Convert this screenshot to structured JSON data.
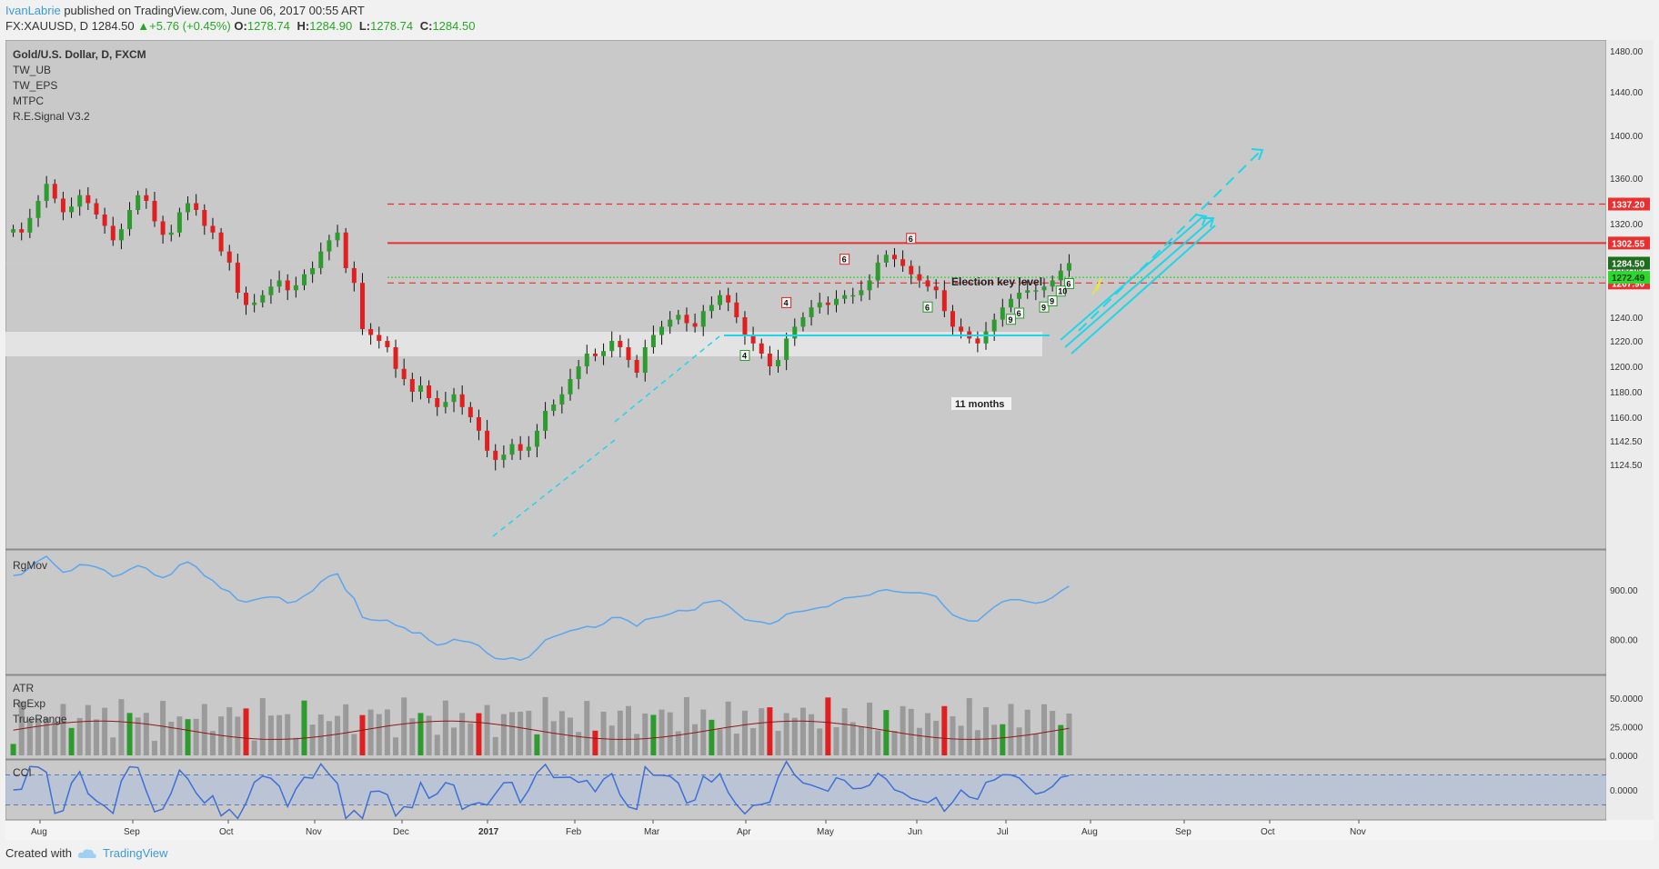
{
  "header": {
    "author": "IvanLabrie",
    "published_text": " published on TradingView.com, June 06, 2017 00:55 ART",
    "symbol": "FX:XAUUSD, D",
    "last": "1284.50",
    "change": "+5.76 (+0.45%)",
    "o_label": "O:",
    "o": "1278.74",
    "h_label": "H:",
    "h": "1284.90",
    "l_label": "L:",
    "l": "1278.74",
    "c_label": "C:",
    "c": "1284.50"
  },
  "legend": [
    "Gold/U.S. Dollar, D, FXCM",
    "TW_UB",
    "TW_EPS",
    "MTPC",
    "R.E.Signal V3.2"
  ],
  "footer": {
    "created_with": "Created with",
    "brand": "TradingView"
  },
  "colors": {
    "up": "#2e9b2e",
    "down": "#e02020",
    "cyan": "#1fd6e8",
    "blue_line": "#5ba6ef",
    "red_level": "#e83030",
    "accent": "#3d9bd6"
  },
  "chart_data": {
    "type": "candlestick",
    "title": "Gold/U.S. Dollar, D, FXCM",
    "x_labels": [
      "Aug",
      "Sep",
      "Oct",
      "Nov",
      "Dec",
      "2017",
      "Feb",
      "Mar",
      "Apr",
      "May",
      "Jun",
      "Jul",
      "Aug",
      "Sep",
      "Oct",
      "Nov"
    ],
    "price_ticks": [
      "1480.00",
      "1440.00",
      "1400.00",
      "1360.00",
      "1320.00",
      "1280.00",
      "1240.00",
      "1220.00",
      "1200.00",
      "1180.00",
      "1160.00",
      "1142.50",
      "1124.50"
    ],
    "ylim": [
      1110,
      1490
    ],
    "levels": [
      {
        "label": "1337.20",
        "value": 1337.2,
        "style": "dashed",
        "color": "#e83030"
      },
      {
        "label": "1302.55",
        "value": 1302.55,
        "style": "solid",
        "color": "#e83030"
      },
      {
        "label": "1267.90",
        "value": 1267.9,
        "style": "dashed",
        "color": "#e83030"
      },
      {
        "label": "1284.50",
        "value": 1284.5,
        "style": "last",
        "color": "#1e6e1e"
      },
      {
        "label": "1272.49",
        "value": 1272.49,
        "style": "dotted",
        "color": "#2ed62e"
      }
    ],
    "annotations": {
      "election": "Election key level",
      "months": "11 months",
      "counts": [
        "4",
        "6",
        "6",
        "6",
        "4",
        "6",
        "6",
        "9",
        "9",
        "10",
        "9"
      ]
    },
    "close_series": [
      1315,
      1312,
      1325,
      1340,
      1355,
      1342,
      1330,
      1335,
      1345,
      1338,
      1328,
      1318,
      1305,
      1315,
      1332,
      1345,
      1340,
      1322,
      1310,
      1312,
      1330,
      1338,
      1332,
      1318,
      1312,
      1295,
      1285,
      1260,
      1250,
      1252,
      1258,
      1265,
      1270,
      1262,
      1266,
      1275,
      1280,
      1295,
      1305,
      1312,
      1280,
      1268,
      1230,
      1225,
      1220,
      1215,
      1198,
      1190,
      1180,
      1185,
      1175,
      1168,
      1172,
      1178,
      1168,
      1160,
      1150,
      1135,
      1128,
      1132,
      1140,
      1135,
      1138,
      1150,
      1165,
      1170,
      1178,
      1190,
      1200,
      1210,
      1208,
      1212,
      1220,
      1215,
      1205,
      1195,
      1215,
      1225,
      1232,
      1238,
      1242,
      1235,
      1232,
      1245,
      1250,
      1258,
      1252,
      1240,
      1225,
      1218,
      1210,
      1200,
      1205,
      1222,
      1232,
      1240,
      1248,
      1252,
      1250,
      1255,
      1258,
      1258,
      1262,
      1270,
      1285,
      1292,
      1288,
      1282,
      1275,
      1270,
      1265,
      1262,
      1245,
      1232,
      1228,
      1222,
      1218,
      1228,
      1238,
      1248,
      1255,
      1260,
      1262,
      1262,
      1265,
      1270,
      1278,
      1284.5
    ],
    "panels": {
      "rgmov": {
        "label": "RgMov",
        "ticks": [
          "900.00",
          "800.00"
        ],
        "ylim": [
          730,
          980
        ]
      },
      "atr": {
        "labels": [
          "ATR",
          "RgExp",
          "TrueRange"
        ],
        "ticks": [
          "50.0000",
          "25.0000",
          "0.0000"
        ],
        "ylim": [
          0,
          70
        ]
      },
      "cci": {
        "label": "CCI",
        "ticks": [
          "0.0000"
        ],
        "ylim": [
          -200,
          200
        ]
      }
    }
  }
}
